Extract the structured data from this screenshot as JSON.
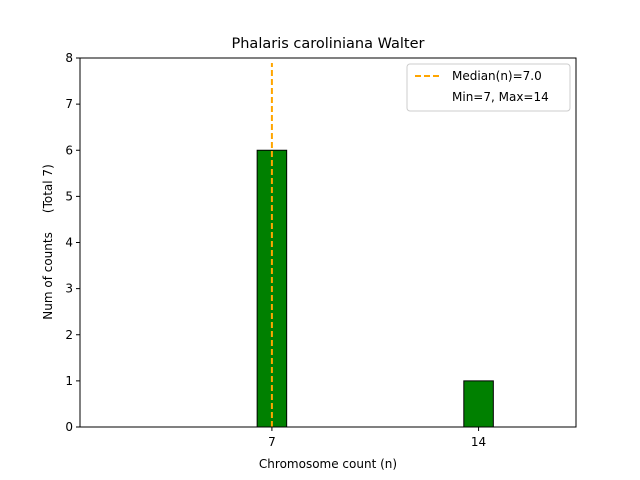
{
  "chart_data": {
    "type": "bar",
    "title": "Phalaris caroliniana Walter",
    "xlabel": "Chromosome count (n)",
    "ylabel": "Num of counts     (Total 7)",
    "x": [
      7,
      14
    ],
    "x_tick_labels": [
      "7",
      "14"
    ],
    "values": [
      6,
      1
    ],
    "xlim": [
      0.5,
      17.3
    ],
    "ylim": [
      0,
      8
    ],
    "y_ticks": [
      0,
      1,
      2,
      3,
      4,
      5,
      6,
      7,
      8
    ],
    "bar_width": 1.0,
    "bar_color": "#008000",
    "bar_edge_color": "#000000",
    "median": {
      "value": 7.0,
      "color": "#FFA500",
      "label": "Median(n)=7.0"
    },
    "legend": {
      "position": "top-right",
      "entries": [
        "Median(n)=7.0",
        "Min=7, Max=14"
      ]
    },
    "grid": false
  }
}
